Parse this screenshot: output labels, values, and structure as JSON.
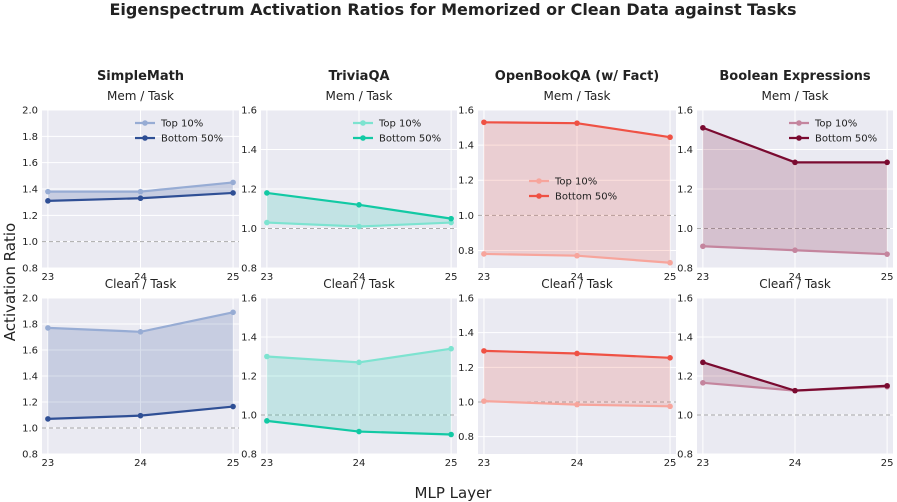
{
  "figure": {
    "title": "Eigenspectrum Activation Ratios for Memorized or Clean Data against Tasks",
    "xlabel": "MLP Layer",
    "ylabel": "Activation Ratio"
  },
  "columns": [
    {
      "title": "SimpleMath",
      "top_color": "#97acd4",
      "bottom_color": "#2f4f95"
    },
    {
      "title": "TriviaQA",
      "top_color": "#7de3d0",
      "bottom_color": "#12c9a4"
    },
    {
      "title": "OpenBookQA (w/ Fact)",
      "top_color": "#f7a59c",
      "bottom_color": "#ef5144"
    },
    {
      "title": "Boolean Expressions",
      "top_color": "#c4859e",
      "bottom_color": "#7a0a30"
    }
  ],
  "row_titles": [
    "Mem / Task",
    "Clean / Task"
  ],
  "chart_data": [
    {
      "type": "line",
      "column": "SimpleMath",
      "title": "Mem / Task",
      "x": [
        23,
        24,
        25
      ],
      "ylim": [
        0.8,
        2.0
      ],
      "yticks": [
        0.8,
        1.0,
        1.2,
        1.4,
        1.6,
        1.8,
        2.0
      ],
      "reference_line": 1.0,
      "legend": "top-right",
      "series": [
        {
          "name": "Top 10%",
          "values": [
            1.38,
            1.38,
            1.45
          ]
        },
        {
          "name": "Bottom 50%",
          "values": [
            1.31,
            1.33,
            1.37
          ]
        }
      ]
    },
    {
      "type": "line",
      "column": "TriviaQA",
      "title": "Mem / Task",
      "x": [
        23,
        24,
        25
      ],
      "ylim": [
        0.8,
        1.6
      ],
      "yticks": [
        0.8,
        1.0,
        1.2,
        1.4,
        1.6
      ],
      "reference_line": 1.0,
      "legend": "top-right",
      "series": [
        {
          "name": "Top 10%",
          "values": [
            1.03,
            1.01,
            1.03
          ]
        },
        {
          "name": "Bottom 50%",
          "values": [
            1.18,
            1.12,
            1.05
          ]
        }
      ]
    },
    {
      "type": "line",
      "column": "OpenBookQA (w/ Fact)",
      "title": "Mem / Task",
      "x": [
        23,
        24,
        25
      ],
      "ylim": [
        0.7,
        1.6
      ],
      "yticks": [
        0.8,
        1.0,
        1.2,
        1.4,
        1.6
      ],
      "reference_line": 1.0,
      "legend": "center",
      "series": [
        {
          "name": "Top 10%",
          "values": [
            0.78,
            0.77,
            0.73
          ]
        },
        {
          "name": "Bottom 50%",
          "values": [
            1.53,
            1.525,
            1.445
          ]
        }
      ]
    },
    {
      "type": "line",
      "column": "Boolean Expressions",
      "title": "Mem / Task",
      "x": [
        23,
        24,
        25
      ],
      "ylim": [
        0.8,
        1.6
      ],
      "yticks": [
        0.8,
        1.0,
        1.2,
        1.4,
        1.6
      ],
      "reference_line": 1.0,
      "legend": "top-right",
      "series": [
        {
          "name": "Top 10%",
          "values": [
            0.91,
            0.89,
            0.87
          ]
        },
        {
          "name": "Bottom 50%",
          "values": [
            1.51,
            1.335,
            1.335
          ]
        }
      ]
    },
    {
      "type": "line",
      "column": "SimpleMath",
      "title": "Clean / Task",
      "x": [
        23,
        24,
        25
      ],
      "ylim": [
        0.8,
        2.0
      ],
      "yticks": [
        0.8,
        1.0,
        1.2,
        1.4,
        1.6,
        1.8,
        2.0
      ],
      "reference_line": 1.0,
      "series": [
        {
          "name": "Top 10%",
          "values": [
            1.77,
            1.74,
            1.89
          ]
        },
        {
          "name": "Bottom 50%",
          "values": [
            1.07,
            1.095,
            1.165
          ]
        }
      ]
    },
    {
      "type": "line",
      "column": "TriviaQA",
      "title": "Clean / Task",
      "x": [
        23,
        24,
        25
      ],
      "ylim": [
        0.8,
        1.6
      ],
      "yticks": [
        0.8,
        1.0,
        1.2,
        1.4,
        1.6
      ],
      "reference_line": 1.0,
      "series": [
        {
          "name": "Top 10%",
          "values": [
            1.3,
            1.27,
            1.34
          ]
        },
        {
          "name": "Bottom 50%",
          "values": [
            0.97,
            0.915,
            0.9
          ]
        }
      ]
    },
    {
      "type": "line",
      "column": "OpenBookQA (w/ Fact)",
      "title": "Clean / Task",
      "x": [
        23,
        24,
        25
      ],
      "ylim": [
        0.7,
        1.6
      ],
      "yticks": [
        0.8,
        1.0,
        1.2,
        1.4,
        1.6
      ],
      "reference_line": 1.0,
      "series": [
        {
          "name": "Top 10%",
          "values": [
            1.005,
            0.985,
            0.975
          ]
        },
        {
          "name": "Bottom 50%",
          "values": [
            1.295,
            1.28,
            1.255
          ]
        }
      ]
    },
    {
      "type": "line",
      "column": "Boolean Expressions",
      "title": "Clean / Task",
      "x": [
        23,
        24,
        25
      ],
      "ylim": [
        0.8,
        1.6
      ],
      "yticks": [
        0.8,
        1.0,
        1.2,
        1.4,
        1.6
      ],
      "reference_line": 1.0,
      "series": [
        {
          "name": "Top 10%",
          "values": [
            1.165,
            1.125,
            1.145
          ]
        },
        {
          "name": "Bottom 50%",
          "values": [
            1.27,
            1.125,
            1.15
          ]
        }
      ]
    }
  ]
}
